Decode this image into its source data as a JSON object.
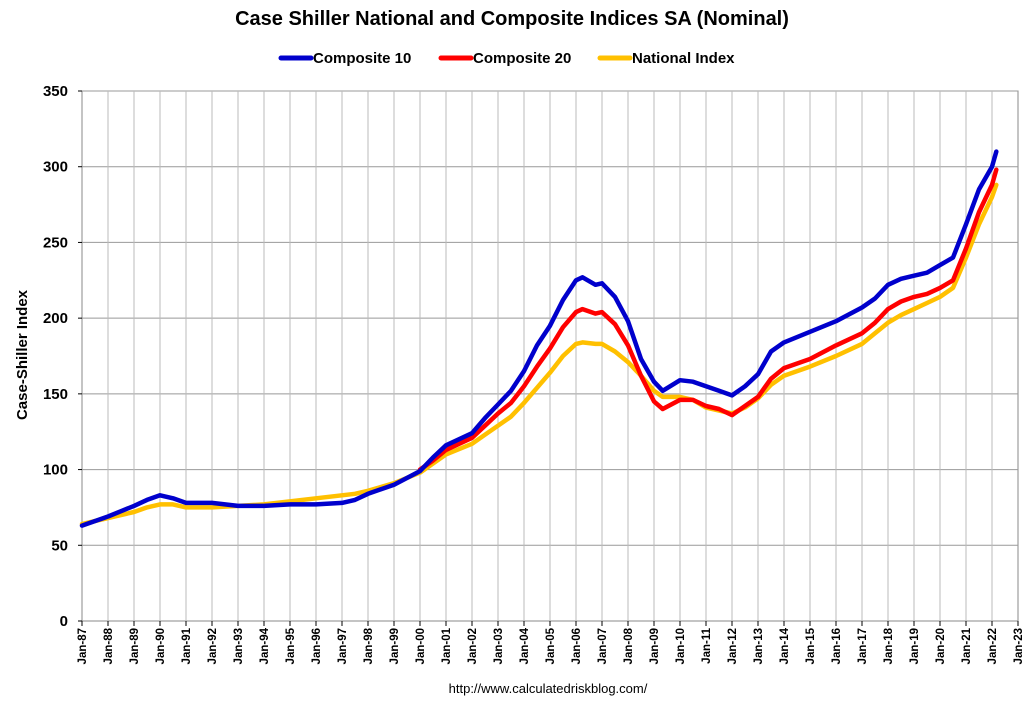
{
  "chart_data": {
    "type": "line",
    "title": "Case Shiller National and Composite Indices SA (Nominal)",
    "ylabel": "Case-Shiller Index",
    "xlabel": "",
    "ylim": [
      0,
      350
    ],
    "yticks": [
      "0",
      "50",
      "100",
      "150",
      "200",
      "250",
      "300",
      "350"
    ],
    "xlim": [
      "1987-01",
      "2023-01"
    ],
    "xticks": [
      "Jan-87",
      "Jan-88",
      "Jan-89",
      "Jan-90",
      "Jan-91",
      "Jan-92",
      "Jan-93",
      "Jan-94",
      "Jan-95",
      "Jan-96",
      "Jan-97",
      "Jan-98",
      "Jan-99",
      "Jan-00",
      "Jan-01",
      "Jan-02",
      "Jan-03",
      "Jan-04",
      "Jan-05",
      "Jan-06",
      "Jan-07",
      "Jan-08",
      "Jan-09",
      "Jan-10",
      "Jan-11",
      "Jan-12",
      "Jan-13",
      "Jan-14",
      "Jan-15",
      "Jan-16",
      "Jan-17",
      "Jan-18",
      "Jan-19",
      "Jan-20",
      "Jan-21",
      "Jan-22",
      "Jan-23"
    ],
    "grid": true,
    "legend_position": "top",
    "series": [
      {
        "name": "Composite 10",
        "color": "#0000CC",
        "points": [
          [
            "1987-01",
            63
          ],
          [
            "1988-01",
            69
          ],
          [
            "1989-01",
            76
          ],
          [
            "1989-07",
            80
          ],
          [
            "1990-01",
            83
          ],
          [
            "1990-07",
            81
          ],
          [
            "1991-01",
            78
          ],
          [
            "1991-07",
            78
          ],
          [
            "1992-01",
            78
          ],
          [
            "1993-01",
            76
          ],
          [
            "1994-01",
            76
          ],
          [
            "1995-01",
            77
          ],
          [
            "1996-01",
            77
          ],
          [
            "1997-01",
            78
          ],
          [
            "1997-07",
            80
          ],
          [
            "1998-01",
            84
          ],
          [
            "1999-01",
            90
          ],
          [
            "2000-01",
            99
          ],
          [
            "2000-07",
            108
          ],
          [
            "2001-01",
            116
          ],
          [
            "2002-01",
            124
          ],
          [
            "2002-07",
            134
          ],
          [
            "2003-01",
            143
          ],
          [
            "2003-07",
            152
          ],
          [
            "2004-01",
            165
          ],
          [
            "2004-07",
            182
          ],
          [
            "2005-01",
            195
          ],
          [
            "2005-07",
            212
          ],
          [
            "2006-01",
            225
          ],
          [
            "2006-04",
            227
          ],
          [
            "2006-10",
            222
          ],
          [
            "2007-01",
            223
          ],
          [
            "2007-07",
            214
          ],
          [
            "2008-01",
            198
          ],
          [
            "2008-07",
            173
          ],
          [
            "2009-01",
            158
          ],
          [
            "2009-05",
            152
          ],
          [
            "2010-01",
            159
          ],
          [
            "2010-07",
            158
          ],
          [
            "2011-01",
            155
          ],
          [
            "2011-07",
            152
          ],
          [
            "2012-01",
            149
          ],
          [
            "2012-07",
            155
          ],
          [
            "2013-01",
            163
          ],
          [
            "2013-07",
            178
          ],
          [
            "2014-01",
            184
          ],
          [
            "2015-01",
            191
          ],
          [
            "2016-01",
            198
          ],
          [
            "2017-01",
            207
          ],
          [
            "2017-07",
            213
          ],
          [
            "2018-01",
            222
          ],
          [
            "2018-07",
            226
          ],
          [
            "2019-01",
            228
          ],
          [
            "2019-07",
            230
          ],
          [
            "2020-01",
            235
          ],
          [
            "2020-07",
            240
          ],
          [
            "2021-01",
            262
          ],
          [
            "2021-07",
            285
          ],
          [
            "2022-01",
            300
          ],
          [
            "2022-03",
            310
          ]
        ]
      },
      {
        "name": "Composite 20",
        "color": "#FF0000",
        "points": [
          [
            "2000-01",
            100
          ],
          [
            "2000-07",
            106
          ],
          [
            "2001-01",
            113
          ],
          [
            "2002-01",
            121
          ],
          [
            "2002-07",
            129
          ],
          [
            "2003-01",
            137
          ],
          [
            "2003-07",
            144
          ],
          [
            "2004-01",
            155
          ],
          [
            "2004-07",
            168
          ],
          [
            "2005-01",
            180
          ],
          [
            "2005-07",
            194
          ],
          [
            "2006-01",
            204
          ],
          [
            "2006-04",
            206
          ],
          [
            "2006-10",
            203
          ],
          [
            "2007-01",
            204
          ],
          [
            "2007-07",
            196
          ],
          [
            "2008-01",
            182
          ],
          [
            "2008-07",
            162
          ],
          [
            "2009-01",
            145
          ],
          [
            "2009-05",
            140
          ],
          [
            "2010-01",
            146
          ],
          [
            "2010-07",
            146
          ],
          [
            "2011-01",
            142
          ],
          [
            "2011-07",
            140
          ],
          [
            "2012-01",
            136
          ],
          [
            "2012-07",
            142
          ],
          [
            "2013-01",
            148
          ],
          [
            "2013-07",
            160
          ],
          [
            "2014-01",
            167
          ],
          [
            "2015-01",
            173
          ],
          [
            "2016-01",
            182
          ],
          [
            "2017-01",
            190
          ],
          [
            "2017-07",
            197
          ],
          [
            "2018-01",
            206
          ],
          [
            "2018-07",
            211
          ],
          [
            "2019-01",
            214
          ],
          [
            "2019-07",
            216
          ],
          [
            "2020-01",
            220
          ],
          [
            "2020-07",
            225
          ],
          [
            "2021-01",
            246
          ],
          [
            "2021-07",
            270
          ],
          [
            "2022-01",
            288
          ],
          [
            "2022-03",
            298
          ]
        ]
      },
      {
        "name": "National Index",
        "color": "#FFC000",
        "points": [
          [
            "1987-01",
            64
          ],
          [
            "1988-01",
            68
          ],
          [
            "1989-01",
            72
          ],
          [
            "1989-07",
            75
          ],
          [
            "1990-01",
            77
          ],
          [
            "1990-07",
            77
          ],
          [
            "1991-01",
            75
          ],
          [
            "1992-01",
            75
          ],
          [
            "1993-01",
            76
          ],
          [
            "1994-01",
            77
          ],
          [
            "1995-01",
            79
          ],
          [
            "1996-01",
            81
          ],
          [
            "1997-01",
            83
          ],
          [
            "1997-07",
            84
          ],
          [
            "1998-01",
            86
          ],
          [
            "1999-01",
            91
          ],
          [
            "2000-01",
            98
          ],
          [
            "2000-07",
            104
          ],
          [
            "2001-01",
            110
          ],
          [
            "2002-01",
            117
          ],
          [
            "2002-07",
            123
          ],
          [
            "2003-01",
            129
          ],
          [
            "2003-07",
            135
          ],
          [
            "2004-01",
            144
          ],
          [
            "2004-07",
            154
          ],
          [
            "2005-01",
            164
          ],
          [
            "2005-07",
            175
          ],
          [
            "2006-01",
            183
          ],
          [
            "2006-04",
            184
          ],
          [
            "2006-10",
            183
          ],
          [
            "2007-01",
            183
          ],
          [
            "2007-07",
            178
          ],
          [
            "2008-01",
            171
          ],
          [
            "2008-07",
            162
          ],
          [
            "2009-01",
            152
          ],
          [
            "2009-05",
            148
          ],
          [
            "2010-01",
            148
          ],
          [
            "2010-07",
            146
          ],
          [
            "2011-01",
            141
          ],
          [
            "2011-07",
            139
          ],
          [
            "2012-01",
            137
          ],
          [
            "2012-07",
            141
          ],
          [
            "2013-01",
            147
          ],
          [
            "2013-07",
            156
          ],
          [
            "2014-01",
            162
          ],
          [
            "2015-01",
            168
          ],
          [
            "2016-01",
            175
          ],
          [
            "2017-01",
            183
          ],
          [
            "2017-07",
            190
          ],
          [
            "2018-01",
            197
          ],
          [
            "2018-07",
            202
          ],
          [
            "2019-01",
            206
          ],
          [
            "2019-07",
            210
          ],
          [
            "2020-01",
            214
          ],
          [
            "2020-07",
            220
          ],
          [
            "2021-01",
            240
          ],
          [
            "2021-07",
            262
          ],
          [
            "2022-01",
            280
          ],
          [
            "2022-03",
            288
          ]
        ]
      }
    ]
  },
  "footer": {
    "source_url": "http://www.calculatedriskblog.com/"
  }
}
